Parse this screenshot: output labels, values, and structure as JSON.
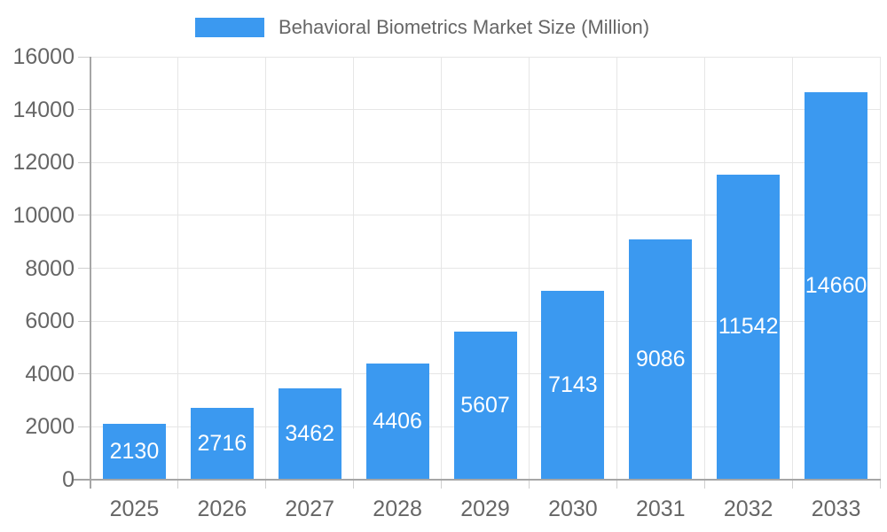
{
  "chart_data": {
    "type": "bar",
    "legend": {
      "label": "Behavioral Biometrics Market Size (Million)",
      "position": "top"
    },
    "categories": [
      "2025",
      "2026",
      "2027",
      "2028",
      "2029",
      "2030",
      "2031",
      "2032",
      "2033"
    ],
    "series": [
      {
        "name": "Behavioral Biometrics Market Size (Million)",
        "values": [
          2130,
          2716,
          3462,
          4406,
          5607,
          7143,
          9086,
          11542,
          14660
        ]
      }
    ],
    "ylim": [
      0,
      16000
    ],
    "yticks": [
      0,
      2000,
      4000,
      6000,
      8000,
      10000,
      12000,
      14000,
      16000
    ],
    "xlabel": "",
    "ylabel": "",
    "grid": true,
    "value_labels": "inside-center",
    "colors": {
      "bar": "#3B99F0",
      "value_label": "#FFFFFF",
      "axis_label": "#666666",
      "legend_text": "#666666",
      "gridline": "#E6E6E6",
      "tick": "#CFCFCF",
      "axis_line": "#A6A6A6",
      "background": "#FFFFFF"
    }
  }
}
